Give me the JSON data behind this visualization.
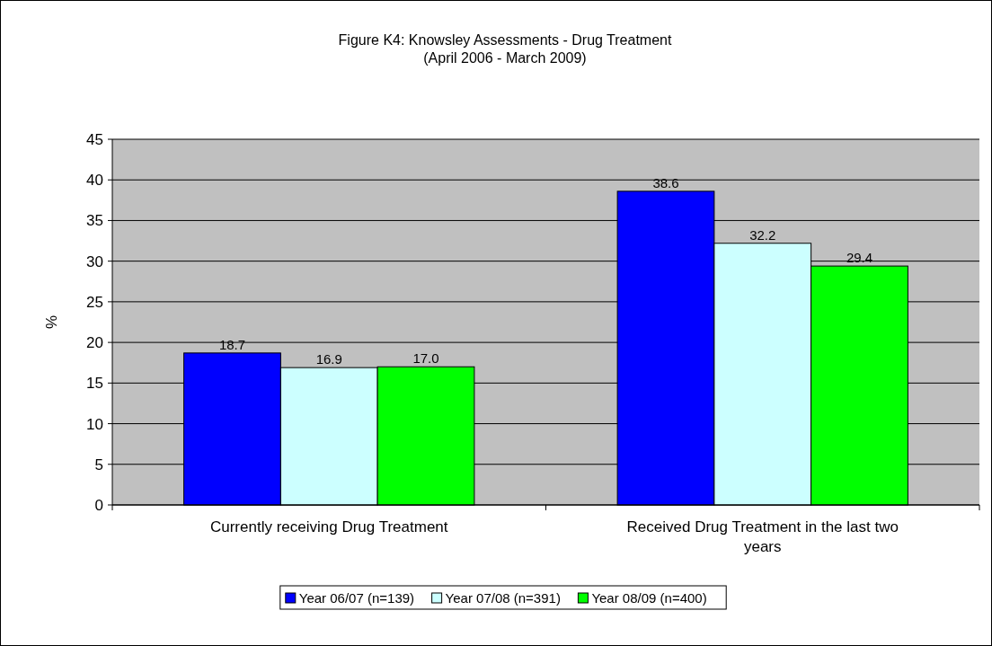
{
  "chart_data": {
    "type": "bar",
    "title": "Figure K4: Knowsley Assessments - Drug Treatment\n(April 2006 - March 2009)",
    "ylabel": "%",
    "categories": [
      "Currently receiving Drug Treatment",
      "Received Drug Treatment in the last two years"
    ],
    "series": [
      {
        "name": "Year 06/07 (n=139)",
        "color": "#0000ff",
        "values": [
          18.7,
          38.6
        ],
        "value_labels": [
          "18.7",
          "38.6"
        ]
      },
      {
        "name": "Year 07/08 (n=391)",
        "color": "#ccffff",
        "values": [
          16.9,
          32.2
        ],
        "value_labels": [
          "16.9",
          "32.2"
        ]
      },
      {
        "name": "Year 08/09 (n=400)",
        "color": "#00ff00",
        "values": [
          17.0,
          29.4
        ],
        "value_labels": [
          "17.0",
          "29.4"
        ]
      }
    ],
    "ylim": [
      0,
      45
    ],
    "yticks": [
      0,
      5,
      10,
      15,
      20,
      25,
      30,
      35,
      40,
      45
    ],
    "grid": "y",
    "legend": "bottom"
  }
}
